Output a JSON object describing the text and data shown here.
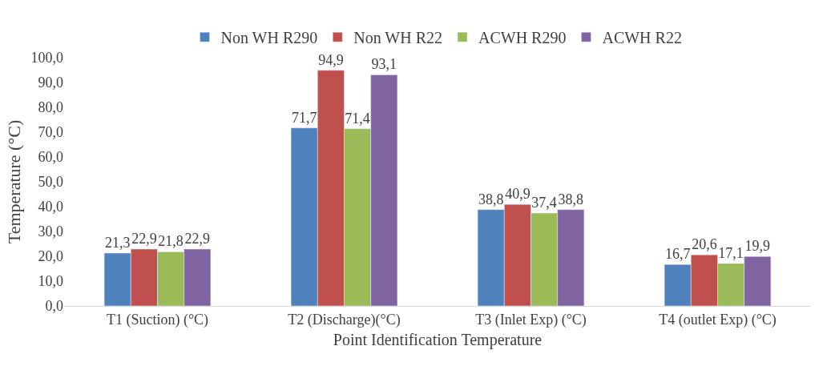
{
  "chart_data": {
    "type": "bar",
    "xlabel": "Point Identification Temperature",
    "ylabel": "Temperature (°C)",
    "categories": [
      "T1 (Suction) (°C)",
      "T2 (Discharge)(°C)",
      "T3 (Inlet Exp) (°C)",
      "T4 (outlet Exp) (°C)"
    ],
    "series": [
      {
        "name": "Non WH R290",
        "color": "#4f81bd",
        "values": [
          21.3,
          71.7,
          38.8,
          16.7
        ],
        "value_labels": [
          "21,3",
          "71,7",
          "38,8",
          "16,7"
        ]
      },
      {
        "name": "Non WH R22",
        "color": "#c0504d",
        "values": [
          22.9,
          94.9,
          40.9,
          20.6
        ],
        "value_labels": [
          "22,9",
          "94,9",
          "40,9",
          "20,6"
        ]
      },
      {
        "name": "ACWH R290",
        "color": "#9bbb59",
        "values": [
          21.8,
          71.4,
          37.4,
          17.1
        ],
        "value_labels": [
          "21,8",
          "71,4",
          "37,4",
          "17,1"
        ]
      },
      {
        "name": "ACWH R22",
        "color": "#8064a2",
        "values": [
          22.9,
          93.1,
          38.8,
          19.9
        ],
        "value_labels": [
          "22,9",
          "93,1",
          "38,8",
          "19,9"
        ]
      }
    ],
    "ylim": [
      0,
      100
    ],
    "yticks": [
      {
        "value": 0,
        "label": "0,0"
      },
      {
        "value": 10,
        "label": "10,0"
      },
      {
        "value": 20,
        "label": "20,0"
      },
      {
        "value": 30,
        "label": "30,0"
      },
      {
        "value": 40,
        "label": "40,0"
      },
      {
        "value": 50,
        "label": "50,0"
      },
      {
        "value": 60,
        "label": "60,0"
      },
      {
        "value": 70,
        "label": "70,0"
      },
      {
        "value": 80,
        "label": "80,0"
      },
      {
        "value": 90,
        "label": "90,0"
      },
      {
        "value": 100,
        "label": "100,0"
      }
    ],
    "grid": false,
    "legend": "top"
  }
}
